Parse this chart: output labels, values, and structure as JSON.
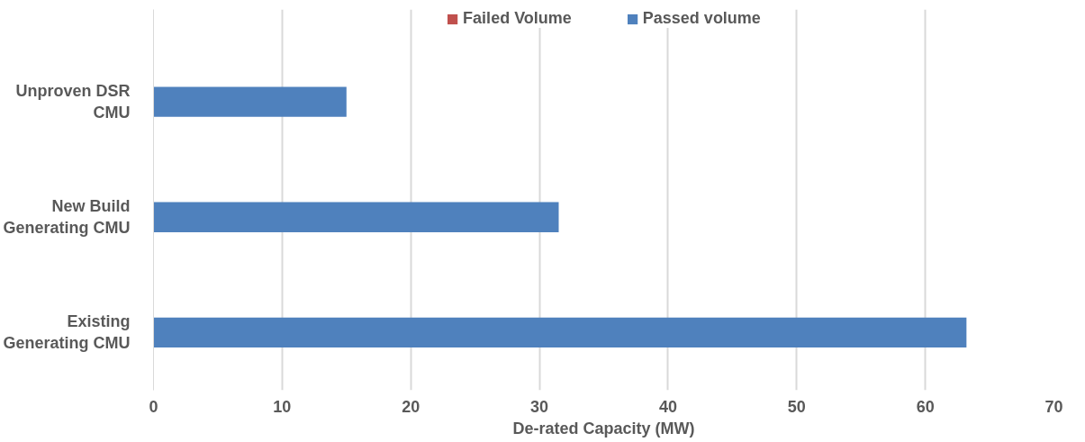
{
  "chart_data": {
    "type": "bar",
    "orientation": "horizontal",
    "stacked": true,
    "xlabel": "De-rated Capacity (MW)",
    "categories": [
      "Unproven DSR CMU",
      "New Build Generating CMU",
      "Existing Generating CMU"
    ],
    "series": [
      {
        "name": "Failed Volume",
        "color": "#c0504d",
        "values": [
          0,
          0,
          0
        ]
      },
      {
        "name": "Passed volume",
        "color": "#4f81bd",
        "values": [
          15.0,
          31.5,
          63.2
        ]
      }
    ],
    "xlim": [
      0,
      70
    ],
    "xticks": [
      0,
      10,
      20,
      30,
      40,
      50,
      60,
      70
    ],
    "grid": "x",
    "legend": "top"
  }
}
